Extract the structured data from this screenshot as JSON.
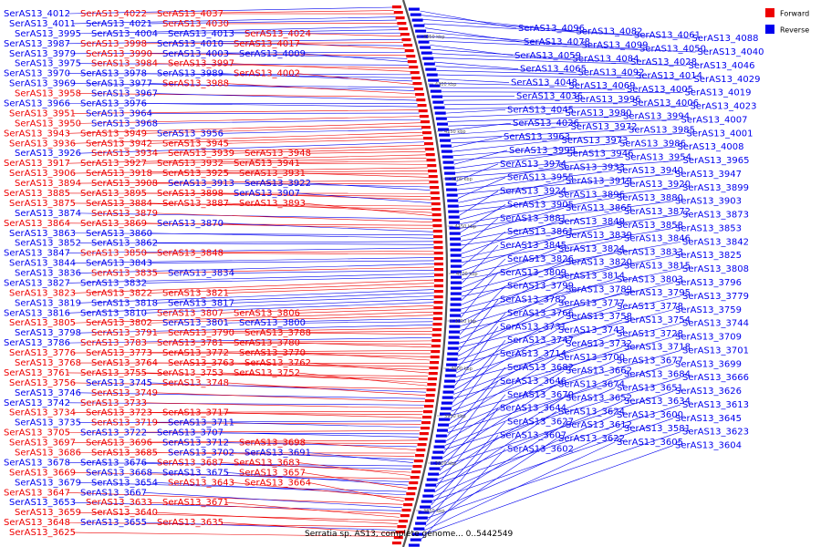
{
  "caption": "Serratia sp. AS13, complete genome... 0..5442549",
  "legend": [
    {
      "label": "Forward",
      "color": "#ee0000"
    },
    {
      "label": "Reverse",
      "color": "#0000ee"
    }
  ],
  "colors": {
    "forward": "#ee0000",
    "reverse": "#0000ee",
    "backbone": "#555555"
  },
  "ticks": [
    "4350 kbp",
    "4300 kbp",
    "4250 kbp",
    "4200 kbp",
    "4150 kbp",
    "4100 kbp",
    "4050 kbp",
    "4000 kbp",
    "3950 kbp",
    "3900 kbp",
    "3850 kbp"
  ],
  "left_labels": [
    {
      "t": "SerAS13_4012",
      "s": "r"
    },
    {
      "t": "SerAS13_4022",
      "s": "f"
    },
    {
      "t": "SerAS13_4037",
      "s": "f"
    },
    {
      "t": "SerAS13_4011",
      "s": "r"
    },
    {
      "t": "SerAS13_4021",
      "s": "r"
    },
    {
      "t": "SerAS13_4030",
      "s": "f"
    },
    {
      "t": "SerAS13_3995",
      "s": "r"
    },
    {
      "t": "SerAS13_4004",
      "s": "r"
    },
    {
      "t": "SerAS13_4013",
      "s": "r"
    },
    {
      "t": "SerAS13_4024",
      "s": "f"
    },
    {
      "t": "SerAS13_3987",
      "s": "r"
    },
    {
      "t": "SerAS13_3998",
      "s": "f"
    },
    {
      "t": "SerAS13_4010",
      "s": "r"
    },
    {
      "t": "SerAS13_4017",
      "s": "f"
    },
    {
      "t": "SerAS13_3979",
      "s": "r"
    },
    {
      "t": "SerAS13_3990",
      "s": "f"
    },
    {
      "t": "SerAS13_4003",
      "s": "r"
    },
    {
      "t": "SerAS13_4009",
      "s": "r"
    },
    {
      "t": "SerAS13_3975",
      "s": "r"
    },
    {
      "t": "SerAS13_3984",
      "s": "f"
    },
    {
      "t": "SerAS13_3997",
      "s": "f"
    },
    {
      "t": "SerAS13_3970",
      "s": "r"
    },
    {
      "t": "SerAS13_3978",
      "s": "r"
    },
    {
      "t": "SerAS13_3989",
      "s": "r"
    },
    {
      "t": "SerAS13_4002",
      "s": "f"
    },
    {
      "t": "SerAS13_3969",
      "s": "r"
    },
    {
      "t": "SerAS13_3977",
      "s": "r"
    },
    {
      "t": "SerAS13_3988",
      "s": "f"
    },
    {
      "t": "SerAS13_3958",
      "s": "f"
    },
    {
      "t": "SerAS13_3967",
      "s": "r"
    },
    {
      "t": "SerAS13_3966",
      "s": "r"
    },
    {
      "t": "SerAS13_3976",
      "s": "r"
    },
    {
      "t": "SerAS13_3951",
      "s": "f"
    },
    {
      "t": "SerAS13_3964",
      "s": "r"
    },
    {
      "t": "SerAS13_3950",
      "s": "f"
    },
    {
      "t": "SerAS13_3968",
      "s": "r"
    },
    {
      "t": "SerAS13_3943",
      "s": "f"
    },
    {
      "t": "SerAS13_3949",
      "s": "f"
    },
    {
      "t": "SerAS13_3956",
      "s": "r"
    },
    {
      "t": "SerAS13_3936",
      "s": "f"
    },
    {
      "t": "SerAS13_3942",
      "s": "f"
    },
    {
      "t": "SerAS13_3945",
      "s": "f"
    },
    {
      "t": "SerAS13_3926",
      "s": "r"
    },
    {
      "t": "SerAS13_3934",
      "s": "f"
    },
    {
      "t": "SerAS13_3939",
      "s": "f"
    },
    {
      "t": "SerAS13_3948",
      "s": "f"
    },
    {
      "t": "SerAS13_3917",
      "s": "f"
    },
    {
      "t": "SerAS13_3927",
      "s": "f"
    },
    {
      "t": "SerAS13_3932",
      "s": "f"
    },
    {
      "t": "SerAS13_3941",
      "s": "f"
    },
    {
      "t": "SerAS13_3906",
      "s": "f"
    },
    {
      "t": "SerAS13_3918",
      "s": "f"
    },
    {
      "t": "SerAS13_3925",
      "s": "f"
    },
    {
      "t": "SerAS13_3931",
      "s": "f"
    },
    {
      "t": "SerAS13_3894",
      "s": "f"
    },
    {
      "t": "SerAS13_3908",
      "s": "f"
    },
    {
      "t": "SerAS13_3913",
      "s": "r"
    },
    {
      "t": "SerAS13_3922",
      "s": "r"
    },
    {
      "t": "SerAS13_3885",
      "s": "f"
    },
    {
      "t": "SerAS13_3895",
      "s": "f"
    },
    {
      "t": "SerAS13_3898",
      "s": "f"
    },
    {
      "t": "SerAS13_3907",
      "s": "r"
    },
    {
      "t": "SerAS13_3875",
      "s": "f"
    },
    {
      "t": "SerAS13_3884",
      "s": "f"
    },
    {
      "t": "SerAS13_3887",
      "s": "f"
    },
    {
      "t": "SerAS13_3893",
      "s": "f"
    },
    {
      "t": "SerAS13_3874",
      "s": "r"
    },
    {
      "t": "SerAS13_3879",
      "s": "f"
    },
    {
      "t": "SerAS13_3864",
      "s": "f"
    },
    {
      "t": "SerAS13_3869",
      "s": "f"
    },
    {
      "t": "SerAS13_3870",
      "s": "r"
    },
    {
      "t": "SerAS13_3863",
      "s": "r"
    },
    {
      "t": "SerAS13_3860",
      "s": "r"
    },
    {
      "t": "SerAS13_3852",
      "s": "r"
    },
    {
      "t": "SerAS13_3862",
      "s": "r"
    },
    {
      "t": "SerAS13_3847",
      "s": "r"
    },
    {
      "t": "SerAS13_3850",
      "s": "f"
    },
    {
      "t": "SerAS13_3848",
      "s": "f"
    },
    {
      "t": "SerAS13_3844",
      "s": "r"
    },
    {
      "t": "SerAS13_3843",
      "s": "r"
    },
    {
      "t": "SerAS13_3836",
      "s": "r"
    },
    {
      "t": "SerAS13_3835",
      "s": "f"
    },
    {
      "t": "SerAS13_3834",
      "s": "r"
    },
    {
      "t": "SerAS13_3827",
      "s": "r"
    },
    {
      "t": "SerAS13_3832",
      "s": "r"
    },
    {
      "t": "SerAS13_3823",
      "s": "f"
    },
    {
      "t": "SerAS13_3822",
      "s": "f"
    },
    {
      "t": "SerAS13_3821",
      "s": "f"
    },
    {
      "t": "SerAS13_3819",
      "s": "r"
    },
    {
      "t": "SerAS13_3818",
      "s": "r"
    },
    {
      "t": "SerAS13_3817",
      "s": "r"
    },
    {
      "t": "SerAS13_3816",
      "s": "r"
    },
    {
      "t": "SerAS13_3810",
      "s": "r"
    },
    {
      "t": "SerAS13_3807",
      "s": "f"
    },
    {
      "t": "SerAS13_3806",
      "s": "f"
    },
    {
      "t": "SerAS13_3805",
      "s": "f"
    },
    {
      "t": "SerAS13_3802",
      "s": "f"
    },
    {
      "t": "SerAS13_3801",
      "s": "r"
    },
    {
      "t": "SerAS13_3800",
      "s": "r"
    },
    {
      "t": "SerAS13_3798",
      "s": "r"
    },
    {
      "t": "SerAS13_3791",
      "s": "f"
    },
    {
      "t": "SerAS13_3790",
      "s": "f"
    },
    {
      "t": "SerAS13_3788",
      "s": "f"
    },
    {
      "t": "SerAS13_3786",
      "s": "r"
    },
    {
      "t": "SerAS13_3783",
      "s": "f"
    },
    {
      "t": "SerAS13_3781",
      "s": "f"
    },
    {
      "t": "SerAS13_3780",
      "s": "f"
    },
    {
      "t": "SerAS13_3776",
      "s": "f"
    },
    {
      "t": "SerAS13_3773",
      "s": "f"
    },
    {
      "t": "SerAS13_3772",
      "s": "f"
    },
    {
      "t": "SerAS13_3770",
      "s": "f"
    },
    {
      "t": "SerAS13_3768",
      "s": "f"
    },
    {
      "t": "SerAS13_3764",
      "s": "f"
    },
    {
      "t": "SerAS13_3763",
      "s": "f"
    },
    {
      "t": "SerAS13_3762",
      "s": "f"
    },
    {
      "t": "SerAS13_3761",
      "s": "f"
    },
    {
      "t": "SerAS13_3755",
      "s": "f"
    },
    {
      "t": "SerAS13_3753",
      "s": "f"
    },
    {
      "t": "SerAS13_3752",
      "s": "f"
    },
    {
      "t": "SerAS13_3756",
      "s": "f"
    },
    {
      "t": "SerAS13_3745",
      "s": "r"
    },
    {
      "t": "SerAS13_3748",
      "s": "f"
    },
    {
      "t": "SerAS13_3746",
      "s": "r"
    },
    {
      "t": "SerAS13_3749",
      "s": "f"
    },
    {
      "t": "SerAS13_3742",
      "s": "r"
    },
    {
      "t": "SerAS13_3733",
      "s": "f"
    },
    {
      "t": "SerAS13_3734",
      "s": "f"
    },
    {
      "t": "SerAS13_3723",
      "s": "f"
    },
    {
      "t": "SerAS13_3717",
      "s": "f"
    },
    {
      "t": "SerAS13_3735",
      "s": "r"
    },
    {
      "t": "SerAS13_3719",
      "s": "f"
    },
    {
      "t": "SerAS13_3711",
      "s": "r"
    },
    {
      "t": "SerAS13_3705",
      "s": "f"
    },
    {
      "t": "SerAS13_3722",
      "s": "r"
    },
    {
      "t": "SerAS13_3707",
      "s": "r"
    },
    {
      "t": "SerAS13_3697",
      "s": "f"
    },
    {
      "t": "SerAS13_3696",
      "s": "f"
    },
    {
      "t": "SerAS13_3712",
      "s": "r"
    },
    {
      "t": "SerAS13_3698",
      "s": "f"
    },
    {
      "t": "SerAS13_3686",
      "s": "f"
    },
    {
      "t": "SerAS13_3685",
      "s": "f"
    },
    {
      "t": "SerAS13_3702",
      "s": "r"
    },
    {
      "t": "SerAS13_3691",
      "s": "r"
    },
    {
      "t": "SerAS13_3678",
      "s": "r"
    },
    {
      "t": "SerAS13_3676",
      "s": "r"
    },
    {
      "t": "SerAS13_3687",
      "s": "f"
    },
    {
      "t": "SerAS13_3683",
      "s": "f"
    },
    {
      "t": "SerAS13_3669",
      "s": "f"
    },
    {
      "t": "SerAS13_3668",
      "s": "r"
    },
    {
      "t": "SerAS13_3675",
      "s": "r"
    },
    {
      "t": "SerAS13_3657",
      "s": "f"
    },
    {
      "t": "SerAS13_3679",
      "s": "r"
    },
    {
      "t": "SerAS13_3654",
      "s": "r"
    },
    {
      "t": "SerAS13_3643",
      "s": "f"
    },
    {
      "t": "SerAS13_3664",
      "s": "f"
    },
    {
      "t": "SerAS13_3647",
      "s": "f"
    },
    {
      "t": "SerAS13_3667",
      "s": "r"
    },
    {
      "t": "SerAS13_3653",
      "s": "r"
    },
    {
      "t": "SerAS13_3633",
      "s": "f"
    },
    {
      "t": "SerAS13_3671",
      "s": "f"
    },
    {
      "t": "SerAS13_3659",
      "s": "f"
    },
    {
      "t": "SerAS13_3640",
      "s": "f"
    },
    {
      "t": "SerAS13_3648",
      "s": "f"
    },
    {
      "t": "SerAS13_3655",
      "s": "r"
    },
    {
      "t": "SerAS13_3635",
      "s": "f"
    },
    {
      "t": "SerAS13_3625",
      "s": "f"
    }
  ],
  "right_labels": [
    {
      "t": "SerAS13_4096",
      "s": "r"
    },
    {
      "t": "SerAS13_4082",
      "s": "r"
    },
    {
      "t": "SerAS13_4061",
      "s": "r"
    },
    {
      "t": "SerAS13_4088",
      "s": "r"
    },
    {
      "t": "SerAS13_4078",
      "s": "r"
    },
    {
      "t": "SerAS13_4099",
      "s": "r"
    },
    {
      "t": "SerAS13_4050",
      "s": "r"
    },
    {
      "t": "SerAS13_4040",
      "s": "r"
    },
    {
      "t": "SerAS13_4059",
      "s": "r"
    },
    {
      "t": "SerAS13_4084",
      "s": "r"
    },
    {
      "t": "SerAS13_4028",
      "s": "r"
    },
    {
      "t": "SerAS13_4046",
      "s": "r"
    },
    {
      "t": "SerAS13_4065",
      "s": "r"
    },
    {
      "t": "SerAS13_4092",
      "s": "r"
    },
    {
      "t": "SerAS13_4014",
      "s": "r"
    },
    {
      "t": "SerAS13_4029",
      "s": "r"
    },
    {
      "t": "SerAS13_4048",
      "s": "r"
    },
    {
      "t": "SerAS13_4069",
      "s": "r"
    },
    {
      "t": "SerAS13_4005",
      "s": "r"
    },
    {
      "t": "SerAS13_4019",
      "s": "r"
    },
    {
      "t": "SerAS13_4036",
      "s": "r"
    },
    {
      "t": "SerAS13_3996",
      "s": "r"
    },
    {
      "t": "SerAS13_4006",
      "s": "r"
    },
    {
      "t": "SerAS13_4023",
      "s": "r"
    },
    {
      "t": "SerAS13_4045",
      "s": "r"
    },
    {
      "t": "SerAS13_3980",
      "s": "r"
    },
    {
      "t": "SerAS13_3994",
      "s": "r"
    },
    {
      "t": "SerAS13_4007",
      "s": "r"
    },
    {
      "t": "SerAS13_4026",
      "s": "r"
    },
    {
      "t": "SerAS13_3972",
      "s": "r"
    },
    {
      "t": "SerAS13_3985",
      "s": "r"
    },
    {
      "t": "SerAS13_4001",
      "s": "r"
    },
    {
      "t": "SerAS13_3963",
      "s": "r"
    },
    {
      "t": "SerAS13_3973",
      "s": "r"
    },
    {
      "t": "SerAS13_3986",
      "s": "r"
    },
    {
      "t": "SerAS13_4008",
      "s": "r"
    },
    {
      "t": "SerAS13_3999",
      "s": "r"
    },
    {
      "t": "SerAS13_3946",
      "s": "r"
    },
    {
      "t": "SerAS13_3954",
      "s": "r"
    },
    {
      "t": "SerAS13_3965",
      "s": "r"
    },
    {
      "t": "SerAS13_3974",
      "s": "r"
    },
    {
      "t": "SerAS13_3933",
      "s": "r"
    },
    {
      "t": "SerAS13_3940",
      "s": "r"
    },
    {
      "t": "SerAS13_3947",
      "s": "r"
    },
    {
      "t": "SerAS13_3955",
      "s": "r"
    },
    {
      "t": "SerAS13_3919",
      "s": "r"
    },
    {
      "t": "SerAS13_3920",
      "s": "r"
    },
    {
      "t": "SerAS13_3899",
      "s": "r"
    },
    {
      "t": "SerAS13_3924",
      "s": "r"
    },
    {
      "t": "SerAS13_3896",
      "s": "r"
    },
    {
      "t": "SerAS13_3880",
      "s": "r"
    },
    {
      "t": "SerAS13_3903",
      "s": "r"
    },
    {
      "t": "SerAS13_3905",
      "s": "r"
    },
    {
      "t": "SerAS13_3865",
      "s": "r"
    },
    {
      "t": "SerAS13_3872",
      "s": "r"
    },
    {
      "t": "SerAS13_3873",
      "s": "r"
    },
    {
      "t": "SerAS13_3881",
      "s": "r"
    },
    {
      "t": "SerAS13_3849",
      "s": "r"
    },
    {
      "t": "SerAS13_3858",
      "s": "r"
    },
    {
      "t": "SerAS13_3853",
      "s": "r"
    },
    {
      "t": "SerAS13_3861",
      "s": "r"
    },
    {
      "t": "SerAS13_3839",
      "s": "r"
    },
    {
      "t": "SerAS13_3846",
      "s": "r"
    },
    {
      "t": "SerAS13_3842",
      "s": "r"
    },
    {
      "t": "SerAS13_3845",
      "s": "r"
    },
    {
      "t": "SerAS13_3824",
      "s": "r"
    },
    {
      "t": "SerAS13_3833",
      "s": "r"
    },
    {
      "t": "SerAS13_3825",
      "s": "r"
    },
    {
      "t": "SerAS13_3826",
      "s": "r"
    },
    {
      "t": "SerAS13_3820",
      "s": "r"
    },
    {
      "t": "SerAS13_3815",
      "s": "r"
    },
    {
      "t": "SerAS13_3808",
      "s": "r"
    },
    {
      "t": "SerAS13_3809",
      "s": "r"
    },
    {
      "t": "SerAS13_3814",
      "s": "r"
    },
    {
      "t": "SerAS13_3803",
      "s": "r"
    },
    {
      "t": "SerAS13_3796",
      "s": "r"
    },
    {
      "t": "SerAS13_3799",
      "s": "r"
    },
    {
      "t": "SerAS13_3789",
      "s": "r"
    },
    {
      "t": "SerAS13_3795",
      "s": "r"
    },
    {
      "t": "SerAS13_3779",
      "s": "r"
    },
    {
      "t": "SerAS13_3782",
      "s": "r"
    },
    {
      "t": "SerAS13_3777",
      "s": "r"
    },
    {
      "t": "SerAS13_3778",
      "s": "r"
    },
    {
      "t": "SerAS13_3759",
      "s": "r"
    },
    {
      "t": "SerAS13_3766",
      "s": "r"
    },
    {
      "t": "SerAS13_3758",
      "s": "r"
    },
    {
      "t": "SerAS13_3754",
      "s": "r"
    },
    {
      "t": "SerAS13_3744",
      "s": "r"
    },
    {
      "t": "SerAS13_3731",
      "s": "r"
    },
    {
      "t": "SerAS13_3743",
      "s": "r"
    },
    {
      "t": "SerAS13_3728",
      "s": "r"
    },
    {
      "t": "SerAS13_3709",
      "s": "r"
    },
    {
      "t": "SerAS13_3747",
      "s": "r"
    },
    {
      "t": "SerAS13_3732",
      "s": "r"
    },
    {
      "t": "SerAS13_3718",
      "s": "r"
    },
    {
      "t": "SerAS13_3701",
      "s": "r"
    },
    {
      "t": "SerAS13_3714",
      "s": "r"
    },
    {
      "t": "SerAS13_3700",
      "s": "r"
    },
    {
      "t": "SerAS13_3677",
      "s": "r"
    },
    {
      "t": "SerAS13_3699",
      "s": "r"
    },
    {
      "t": "SerAS13_3682",
      "s": "r"
    },
    {
      "t": "SerAS13_3662",
      "s": "r"
    },
    {
      "t": "SerAS13_3684",
      "s": "r"
    },
    {
      "t": "SerAS13_3666",
      "s": "r"
    },
    {
      "t": "SerAS13_3646",
      "s": "r"
    },
    {
      "t": "SerAS13_3674",
      "s": "r"
    },
    {
      "t": "SerAS13_3651",
      "s": "r"
    },
    {
      "t": "SerAS13_3626",
      "s": "r"
    },
    {
      "t": "SerAS13_3670",
      "s": "r"
    },
    {
      "t": "SerAS13_3652",
      "s": "r"
    },
    {
      "t": "SerAS13_3634",
      "s": "r"
    },
    {
      "t": "SerAS13_3613",
      "s": "r"
    },
    {
      "t": "SerAS13_3644",
      "s": "r"
    },
    {
      "t": "SerAS13_3624",
      "s": "r"
    },
    {
      "t": "SerAS13_3600",
      "s": "r"
    },
    {
      "t": "SerAS13_3645",
      "s": "r"
    },
    {
      "t": "SerAS13_3627",
      "s": "r"
    },
    {
      "t": "SerAS13_3612",
      "s": "r"
    },
    {
      "t": "SerAS13_3581",
      "s": "r"
    },
    {
      "t": "SerAS13_3623",
      "s": "r"
    },
    {
      "t": "SerAS13_3607",
      "s": "r"
    },
    {
      "t": "SerAS13_3622",
      "s": "r"
    },
    {
      "t": "SerAS13_3605",
      "s": "r"
    },
    {
      "t": "SerAS13_3604",
      "s": "r"
    },
    {
      "t": "SerAS13_3602",
      "s": "r"
    }
  ]
}
